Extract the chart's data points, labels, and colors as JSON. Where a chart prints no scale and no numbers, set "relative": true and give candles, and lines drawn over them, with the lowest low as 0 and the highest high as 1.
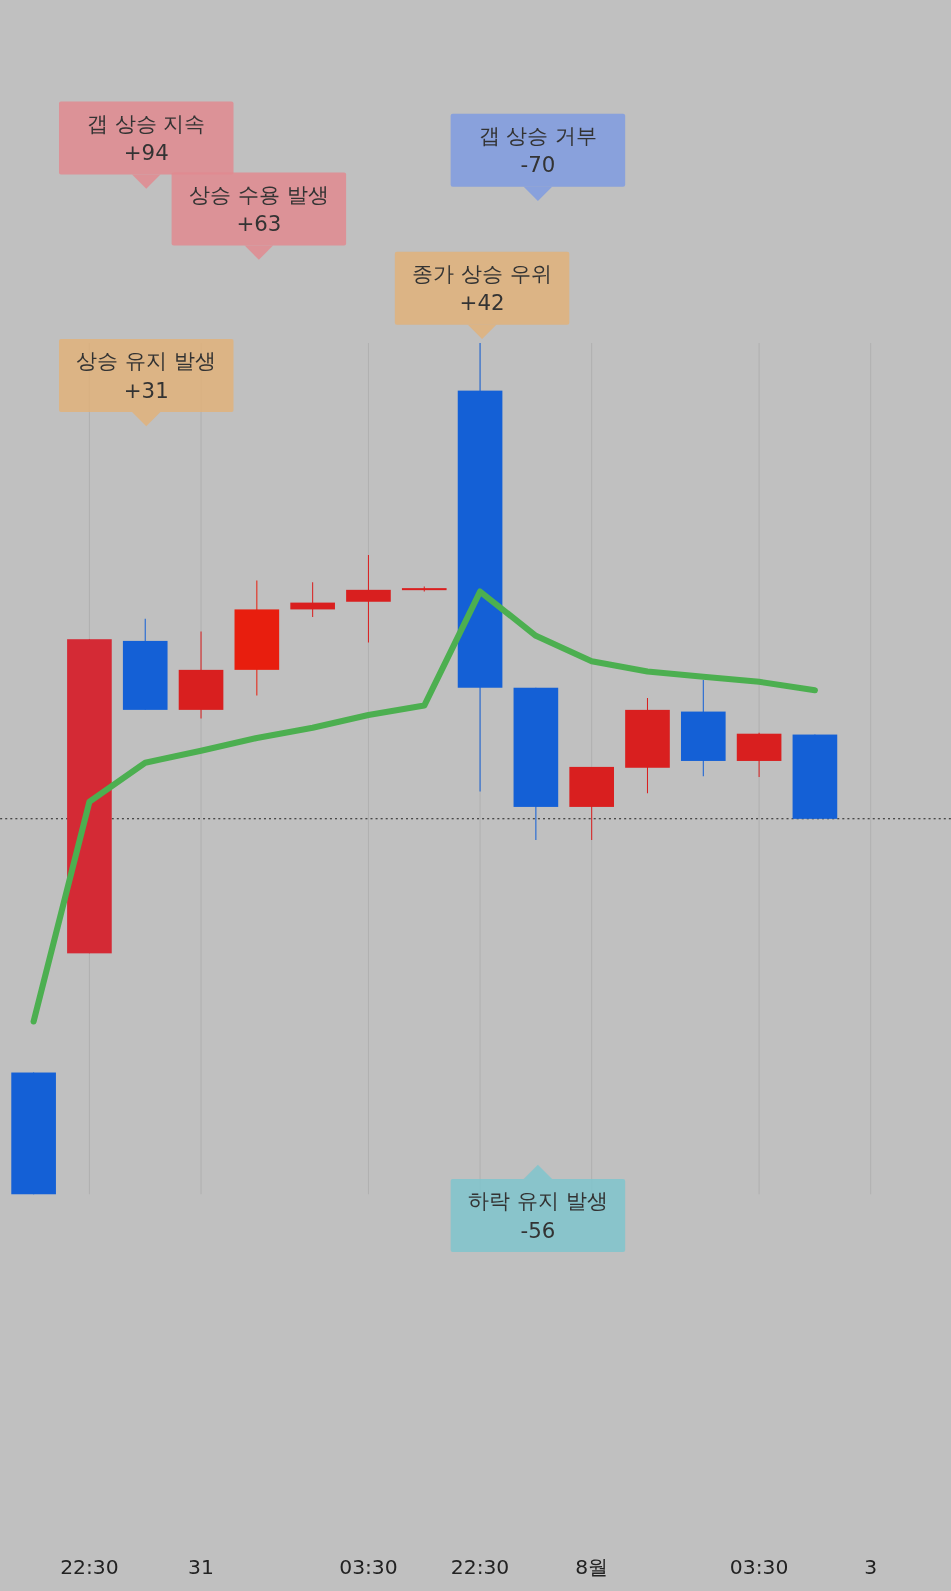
{
  "chart_data": {
    "type": "candlestick",
    "relative": true,
    "grid": "x",
    "categories": [
      null,
      "22:30",
      null,
      "31",
      null,
      null,
      "03:30",
      null,
      "22:30",
      null,
      "8월",
      null,
      null,
      "03:30",
      null,
      "3"
    ],
    "ohlc": [
      [
        0.143,
        0.143,
        0,
        0
      ],
      [
        0.283,
        0.652,
        0.283,
        0.652
      ],
      [
        0.65,
        0.676,
        0.569,
        0.569
      ],
      [
        0.569,
        0.661,
        0.559,
        0.616
      ],
      [
        0.616,
        0.721,
        0.586,
        0.687
      ],
      [
        0.687,
        0.719,
        0.678,
        0.695
      ],
      [
        0.696,
        0.751,
        0.648,
        0.71
      ],
      [
        0.71,
        0.714,
        0.708,
        0.712
      ],
      [
        0.944,
        1,
        0.473,
        0.595
      ],
      [
        0.595,
        0.595,
        0.416,
        0.455
      ],
      [
        0.455,
        0.502,
        0.416,
        0.502
      ],
      [
        0.501,
        0.583,
        0.471,
        0.569
      ],
      [
        0.567,
        0.604,
        0.491,
        0.509
      ],
      [
        0.509,
        0.542,
        0.49,
        0.541
      ],
      [
        0.54,
        0.54,
        0.441,
        0.441
      ],
      null
    ],
    "colors": [
      "#1460d6",
      "#d42a35",
      "#1460d6",
      "#d91f1f",
      "#e81e0e",
      "#d91f1f",
      "#d91f1f",
      "#d91f1f",
      "#1460d6",
      "#1460d6",
      "#d91f1f",
      "#d91f1f",
      "#1460d6",
      "#d91f1f",
      "#1460d6",
      null
    ],
    "series": [
      {
        "type": "line",
        "color": "#4caf50",
        "values": [
          0.203,
          0.461,
          0.507,
          0.521,
          0.536,
          0.548,
          0.563,
          0.574,
          0.708,
          0.656,
          0.626,
          0.614,
          0.608,
          0.602,
          0.592,
          null
        ]
      }
    ],
    "ref_lines": [
      {
        "axis": "y",
        "value": 0.441,
        "color": "#222222",
        "line_style": "dotted"
      }
    ],
    "annotations": [
      "갭 상승 지속\n+94",
      "상승 수용 발생\n+63",
      "종가 상승 우위\n+42",
      "갭 상승 거부\n-70",
      "상승 유지 발생\n+31",
      "하락 유지 발생\n-56"
    ]
  }
}
